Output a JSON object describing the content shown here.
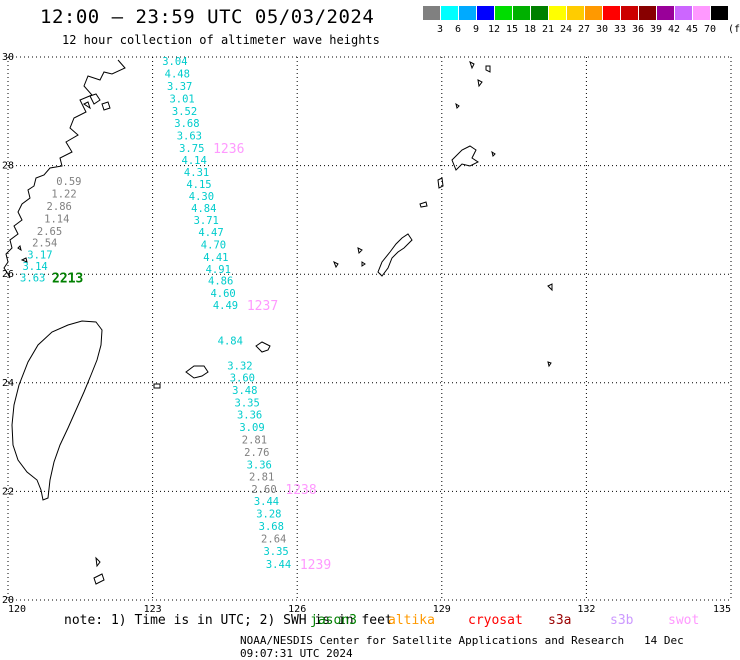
{
  "header": {
    "title": "12:00 – 23:59 UTC 05/03/2024",
    "subtitle": "12 hour collection of altimeter wave heights"
  },
  "legend": {
    "unit": "(ft)",
    "bins": [
      {
        "label": "3",
        "color": "#808080"
      },
      {
        "label": "6",
        "color": "#00ffff"
      },
      {
        "label": "9",
        "color": "#00aaff"
      },
      {
        "label": "12",
        "color": "#0000ff"
      },
      {
        "label": "15",
        "color": "#00dd00"
      },
      {
        "label": "18",
        "color": "#00b000"
      },
      {
        "label": "21",
        "color": "#008000"
      },
      {
        "label": "24",
        "color": "#ffff00"
      },
      {
        "label": "27",
        "color": "#ffcc00"
      },
      {
        "label": "30",
        "color": "#ff9900"
      },
      {
        "label": "33",
        "color": "#ff0000"
      },
      {
        "label": "36",
        "color": "#cc0000"
      },
      {
        "label": "39",
        "color": "#880000"
      },
      {
        "label": "42",
        "color": "#990099"
      },
      {
        "label": "45",
        "color": "#cc66ff"
      },
      {
        "label": "70",
        "color": "#ff99ff"
      },
      {
        "label": "",
        "color": "#000000"
      }
    ]
  },
  "map": {
    "lon_range": [
      120,
      135
    ],
    "lat_range": [
      20,
      30
    ],
    "lon_ticks": [
      "120",
      "123",
      "126",
      "129",
      "132",
      "135"
    ],
    "lat_ticks": [
      "30",
      "28",
      "26",
      "24",
      "22",
      "20"
    ]
  },
  "tracks": [
    {
      "pass": "A",
      "time_label": "2213",
      "time_color": "#008000",
      "points": [
        {
          "lon": 121.0,
          "lat": 27.72,
          "val": "0.59",
          "color": "#808080"
        },
        {
          "lon": 120.9,
          "lat": 27.49,
          "val": "1.22",
          "color": "#808080"
        },
        {
          "lon": 120.8,
          "lat": 27.26,
          "val": "2.86",
          "color": "#808080"
        },
        {
          "lon": 120.75,
          "lat": 27.03,
          "val": "1.14",
          "color": "#808080"
        },
        {
          "lon": 120.6,
          "lat": 26.8,
          "val": "2.65",
          "color": "#808080"
        },
        {
          "lon": 120.5,
          "lat": 26.58,
          "val": "2.54",
          "color": "#808080"
        },
        {
          "lon": 120.4,
          "lat": 26.36,
          "val": "3.17",
          "color": "#00cccc"
        },
        {
          "lon": 120.3,
          "lat": 26.15,
          "val": "3.14",
          "color": "#00cccc"
        },
        {
          "lon": 120.25,
          "lat": 25.94,
          "val": "3.63",
          "color": "#00cccc"
        }
      ]
    },
    {
      "pass": "B",
      "time_label": "1236",
      "time_color": "#ff99ff",
      "points": [
        {
          "lon": 123.2,
          "lat": 29.93,
          "val": "3.04",
          "color": "#00cccc"
        },
        {
          "lon": 123.25,
          "lat": 29.7,
          "val": "4.48",
          "color": "#00cccc"
        },
        {
          "lon": 123.3,
          "lat": 29.47,
          "val": "3.37",
          "color": "#00cccc"
        },
        {
          "lon": 123.35,
          "lat": 29.24,
          "val": "3.01",
          "color": "#00cccc"
        },
        {
          "lon": 123.4,
          "lat": 29.01,
          "val": "3.52",
          "color": "#00cccc"
        },
        {
          "lon": 123.45,
          "lat": 28.78,
          "val": "3.68",
          "color": "#00cccc"
        },
        {
          "lon": 123.5,
          "lat": 28.55,
          "val": "3.63",
          "color": "#00cccc"
        },
        {
          "lon": 123.55,
          "lat": 28.32,
          "val": "3.75",
          "color": "#00cccc"
        },
        {
          "lon": 123.6,
          "lat": 28.1,
          "val": "4.14",
          "color": "#00cccc"
        },
        {
          "lon": 123.65,
          "lat": 27.88,
          "val": "4.31",
          "color": "#00cccc"
        },
        {
          "lon": 123.7,
          "lat": 27.66,
          "val": "4.15",
          "color": "#00cccc"
        },
        {
          "lon": 123.75,
          "lat": 27.44,
          "val": "4.30",
          "color": "#00cccc"
        },
        {
          "lon": 123.8,
          "lat": 27.22,
          "val": "4.84",
          "color": "#00cccc"
        },
        {
          "lon": 123.85,
          "lat": 27.0,
          "val": "3.71",
          "color": "#00cccc"
        },
        {
          "lon": 123.95,
          "lat": 26.78,
          "val": "4.47",
          "color": "#00cccc"
        },
        {
          "lon": 124.0,
          "lat": 26.55,
          "val": "4.70",
          "color": "#00cccc"
        }
      ]
    },
    {
      "pass": "C",
      "time_label": "1237",
      "time_color": "#ff99ff",
      "points": [
        {
          "lon": 124.05,
          "lat": 26.32,
          "val": "4.41",
          "color": "#00cccc"
        },
        {
          "lon": 124.1,
          "lat": 26.1,
          "val": "4.91",
          "color": "#00cccc"
        },
        {
          "lon": 124.15,
          "lat": 25.88,
          "val": "4.86",
          "color": "#00cccc"
        },
        {
          "lon": 124.2,
          "lat": 25.65,
          "val": "4.60",
          "color": "#00cccc"
        },
        {
          "lon": 124.25,
          "lat": 25.43,
          "val": "4.49",
          "color": "#00cccc"
        },
        {
          "lon": 124.35,
          "lat": 24.78,
          "val": "4.84",
          "color": "#00cccc"
        }
      ]
    },
    {
      "pass": "D",
      "time_label": "1238",
      "time_color": "#ff99ff",
      "points": [
        {
          "lon": 124.55,
          "lat": 24.32,
          "val": "3.32",
          "color": "#00cccc"
        },
        {
          "lon": 124.6,
          "lat": 24.1,
          "val": "3.60",
          "color": "#00cccc"
        },
        {
          "lon": 124.65,
          "lat": 23.87,
          "val": "3.48",
          "color": "#00cccc"
        },
        {
          "lon": 124.7,
          "lat": 23.64,
          "val": "3.35",
          "color": "#00cccc"
        },
        {
          "lon": 124.75,
          "lat": 23.42,
          "val": "3.36",
          "color": "#00cccc"
        },
        {
          "lon": 124.8,
          "lat": 23.19,
          "val": "3.09",
          "color": "#00cccc"
        },
        {
          "lon": 124.85,
          "lat": 22.96,
          "val": "2.81",
          "color": "#808080"
        },
        {
          "lon": 124.9,
          "lat": 22.73,
          "val": "2.76",
          "color": "#808080"
        },
        {
          "lon": 124.95,
          "lat": 22.5,
          "val": "3.36",
          "color": "#00cccc"
        },
        {
          "lon": 125.0,
          "lat": 22.27,
          "val": "2.81",
          "color": "#808080"
        },
        {
          "lon": 125.05,
          "lat": 22.04,
          "val": "2.60",
          "color": "#808080"
        }
      ]
    },
    {
      "pass": "E",
      "time_label": "1239",
      "time_color": "#ff99ff",
      "points": [
        {
          "lon": 125.1,
          "lat": 21.82,
          "val": "3.44",
          "color": "#00cccc"
        },
        {
          "lon": 125.15,
          "lat": 21.59,
          "val": "3.28",
          "color": "#00cccc"
        },
        {
          "lon": 125.2,
          "lat": 21.36,
          "val": "3.68",
          "color": "#00cccc"
        },
        {
          "lon": 125.25,
          "lat": 21.13,
          "val": "2.64",
          "color": "#808080"
        },
        {
          "lon": 125.3,
          "lat": 20.9,
          "val": "3.35",
          "color": "#00cccc"
        },
        {
          "lon": 125.35,
          "lat": 20.66,
          "val": "3.44",
          "color": "#00cccc"
        }
      ]
    }
  ],
  "footer": {
    "note": "note: 1) Time is in UTC; 2) SWH is in feet",
    "satellites": [
      {
        "name": "jason3",
        "color": "#008000"
      },
      {
        "name": "altika",
        "color": "#ff9900"
      },
      {
        "name": "cryosat",
        "color": "#ff0000"
      },
      {
        "name": "s3a",
        "color": "#990000"
      },
      {
        "name": "s3b",
        "color": "#cc99ff"
      },
      {
        "name": "swot",
        "color": "#ff99ff"
      }
    ],
    "credit": "NOAA/NESDIS Center for Satellite Applications and Research",
    "generated": "14 Dec 09:07:31 UTC 2024"
  }
}
